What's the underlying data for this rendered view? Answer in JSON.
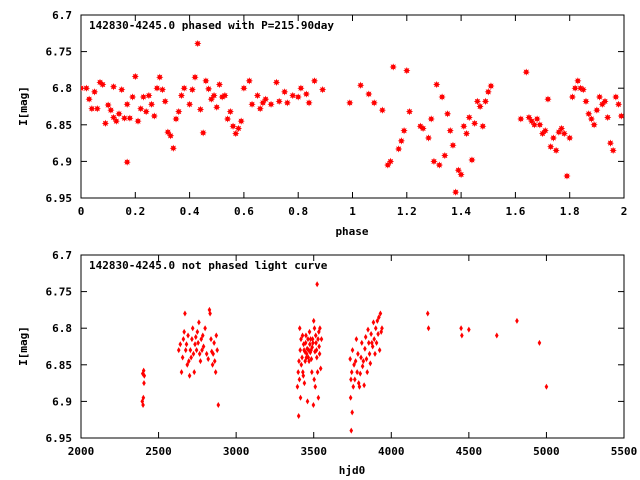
{
  "colors": {
    "points": "#ff0000",
    "axes": "#000000",
    "background": "#ffffff"
  },
  "chart_data": [
    {
      "type": "scatter",
      "title": "142830-4245.0 phased with P=215.90day",
      "xlabel": "phase",
      "ylabel": "I[mag]",
      "xlim": [
        0,
        2
      ],
      "ylim": [
        6.7,
        6.95
      ],
      "y_inverted": true,
      "grid": false,
      "legend": "none",
      "marker": "star",
      "xticks": [
        0,
        0.2,
        0.4,
        0.6,
        0.8,
        1,
        1.2,
        1.4,
        1.6,
        1.8,
        2
      ],
      "xtick_labels": [
        "0",
        "0.2",
        "0.4",
        "0.6",
        "0.8",
        "1",
        "1.2",
        "1.4",
        "1.6",
        "1.8",
        "2"
      ],
      "yticks": [
        6.7,
        6.75,
        6.8,
        6.85,
        6.9,
        6.95
      ],
      "ytick_labels": [
        "6.7",
        "6.75",
        "6.8",
        "6.85",
        "6.9",
        "6.95"
      ],
      "points": [
        [
          0.0,
          6.8
        ],
        [
          0.02,
          6.8
        ],
        [
          0.03,
          6.815
        ],
        [
          0.04,
          6.828
        ],
        [
          0.05,
          6.805
        ],
        [
          0.06,
          6.828
        ],
        [
          0.07,
          6.792
        ],
        [
          0.08,
          6.795
        ],
        [
          0.09,
          6.848
        ],
        [
          0.1,
          6.823
        ],
        [
          0.11,
          6.83
        ],
        [
          0.12,
          6.798
        ],
        [
          0.12,
          6.84
        ],
        [
          0.13,
          6.845
        ],
        [
          0.14,
          6.835
        ],
        [
          0.15,
          6.802
        ],
        [
          0.16,
          6.841
        ],
        [
          0.17,
          6.822
        ],
        [
          0.17,
          6.901
        ],
        [
          0.18,
          6.841
        ],
        [
          0.19,
          6.812
        ],
        [
          0.2,
          6.784
        ],
        [
          0.21,
          6.845
        ],
        [
          0.22,
          6.828
        ],
        [
          0.23,
          6.812
        ],
        [
          0.24,
          6.832
        ],
        [
          0.25,
          6.81
        ],
        [
          0.26,
          6.822
        ],
        [
          0.27,
          6.838
        ],
        [
          0.28,
          6.8
        ],
        [
          0.29,
          6.785
        ],
        [
          0.3,
          6.802
        ],
        [
          0.31,
          6.818
        ],
        [
          0.32,
          6.86
        ],
        [
          0.33,
          6.865
        ],
        [
          0.34,
          6.882
        ],
        [
          0.35,
          6.842
        ],
        [
          0.36,
          6.832
        ],
        [
          0.37,
          6.81
        ],
        [
          0.38,
          6.8
        ],
        [
          0.4,
          6.822
        ],
        [
          0.41,
          6.802
        ],
        [
          0.42,
          6.785
        ],
        [
          0.43,
          6.739
        ],
        [
          0.44,
          6.829
        ],
        [
          0.45,
          6.861
        ],
        [
          0.46,
          6.79
        ],
        [
          0.47,
          6.801
        ],
        [
          0.48,
          6.815
        ],
        [
          0.49,
          6.81
        ],
        [
          0.5,
          6.826
        ],
        [
          0.51,
          6.795
        ],
        [
          0.52,
          6.812
        ],
        [
          0.53,
          6.81
        ],
        [
          0.54,
          6.842
        ],
        [
          0.55,
          6.832
        ],
        [
          0.56,
          6.852
        ],
        [
          0.57,
          6.862
        ],
        [
          0.58,
          6.855
        ],
        [
          0.59,
          6.845
        ],
        [
          0.6,
          6.8
        ],
        [
          0.62,
          6.79
        ],
        [
          0.63,
          6.822
        ],
        [
          0.65,
          6.81
        ],
        [
          0.66,
          6.828
        ],
        [
          0.67,
          6.82
        ],
        [
          0.68,
          6.815
        ],
        [
          0.7,
          6.822
        ],
        [
          0.72,
          6.792
        ],
        [
          0.73,
          6.818
        ],
        [
          0.75,
          6.805
        ],
        [
          0.76,
          6.82
        ],
        [
          0.78,
          6.81
        ],
        [
          0.8,
          6.812
        ],
        [
          0.81,
          6.8
        ],
        [
          0.83,
          6.808
        ],
        [
          0.84,
          6.82
        ],
        [
          0.86,
          6.79
        ],
        [
          0.89,
          6.802
        ],
        [
          0.99,
          6.82
        ],
        [
          1.03,
          6.796
        ],
        [
          1.06,
          6.808
        ],
        [
          1.08,
          6.82
        ],
        [
          1.11,
          6.83
        ],
        [
          1.13,
          6.905
        ],
        [
          1.14,
          6.9
        ],
        [
          1.15,
          6.771
        ],
        [
          1.17,
          6.883
        ],
        [
          1.18,
          6.872
        ],
        [
          1.19,
          6.858
        ],
        [
          1.2,
          6.776
        ],
        [
          1.21,
          6.832
        ],
        [
          1.25,
          6.852
        ],
        [
          1.26,
          6.855
        ],
        [
          1.28,
          6.868
        ],
        [
          1.29,
          6.842
        ],
        [
          1.3,
          6.9
        ],
        [
          1.31,
          6.795
        ],
        [
          1.32,
          6.905
        ],
        [
          1.33,
          6.812
        ],
        [
          1.34,
          6.892
        ],
        [
          1.35,
          6.835
        ],
        [
          1.36,
          6.858
        ],
        [
          1.37,
          6.878
        ],
        [
          1.38,
          6.942
        ],
        [
          1.39,
          6.912
        ],
        [
          1.4,
          6.918
        ],
        [
          1.41,
          6.852
        ],
        [
          1.42,
          6.862
        ],
        [
          1.43,
          6.84
        ],
        [
          1.44,
          6.898
        ],
        [
          1.45,
          6.848
        ],
        [
          1.46,
          6.818
        ],
        [
          1.47,
          6.825
        ],
        [
          1.48,
          6.852
        ],
        [
          1.49,
          6.818
        ],
        [
          1.5,
          6.805
        ],
        [
          1.51,
          6.797
        ],
        [
          1.62,
          6.842
        ],
        [
          1.64,
          6.778
        ],
        [
          1.65,
          6.84
        ],
        [
          1.66,
          6.845
        ],
        [
          1.67,
          6.85
        ],
        [
          1.68,
          6.842
        ],
        [
          1.69,
          6.85
        ],
        [
          1.7,
          6.862
        ],
        [
          1.71,
          6.858
        ],
        [
          1.72,
          6.815
        ],
        [
          1.73,
          6.88
        ],
        [
          1.74,
          6.868
        ],
        [
          1.75,
          6.885
        ],
        [
          1.76,
          6.86
        ],
        [
          1.77,
          6.855
        ],
        [
          1.78,
          6.862
        ],
        [
          1.79,
          6.92
        ],
        [
          1.8,
          6.868
        ],
        [
          1.81,
          6.812
        ],
        [
          1.82,
          6.8
        ],
        [
          1.83,
          6.79
        ],
        [
          1.84,
          6.8
        ],
        [
          1.85,
          6.802
        ],
        [
          1.86,
          6.818
        ],
        [
          1.87,
          6.835
        ],
        [
          1.88,
          6.842
        ],
        [
          1.89,
          6.85
        ],
        [
          1.9,
          6.83
        ],
        [
          1.91,
          6.812
        ],
        [
          1.92,
          6.822
        ],
        [
          1.93,
          6.818
        ],
        [
          1.94,
          6.84
        ],
        [
          1.95,
          6.875
        ],
        [
          1.96,
          6.885
        ],
        [
          1.97,
          6.812
        ],
        [
          1.98,
          6.822
        ],
        [
          1.99,
          6.838
        ]
      ]
    },
    {
      "type": "scatter",
      "title": "142830-4245.0 not phased light curve",
      "xlabel": "hjd0",
      "ylabel": "I[mag]",
      "xlim": [
        2000,
        5500
      ],
      "ylim": [
        6.7,
        6.95
      ],
      "y_inverted": true,
      "grid": false,
      "legend": "none",
      "marker": "diamond",
      "xticks": [
        2000,
        2500,
        3000,
        3500,
        4000,
        4500,
        5000,
        5500
      ],
      "xtick_labels": [
        "2000",
        "2500",
        "3000",
        "3500",
        "4000",
        "4500",
        "5000",
        "5500"
      ],
      "yticks": [
        6.7,
        6.75,
        6.8,
        6.85,
        6.9,
        6.95
      ],
      "ytick_labels": [
        "6.7",
        "6.75",
        "6.8",
        "6.85",
        "6.9",
        "6.95"
      ],
      "points": [
        [
          2395,
          6.9
        ],
        [
          2398,
          6.862
        ],
        [
          2400,
          6.905
        ],
        [
          2402,
          6.895
        ],
        [
          2404,
          6.858
        ],
        [
          2406,
          6.875
        ],
        [
          2408,
          6.865
        ],
        [
          2630,
          6.83
        ],
        [
          2640,
          6.822
        ],
        [
          2648,
          6.86
        ],
        [
          2655,
          6.84
        ],
        [
          2660,
          6.815
        ],
        [
          2665,
          6.805
        ],
        [
          2670,
          6.78
        ],
        [
          2675,
          6.83
        ],
        [
          2680,
          6.822
        ],
        [
          2685,
          6.85
        ],
        [
          2690,
          6.81
        ],
        [
          2695,
          6.845
        ],
        [
          2700,
          6.865
        ],
        [
          2705,
          6.83
        ],
        [
          2710,
          6.84
        ],
        [
          2715,
          6.815
        ],
        [
          2720,
          6.8
        ],
        [
          2725,
          6.835
        ],
        [
          2730,
          6.86
        ],
        [
          2735,
          6.822
        ],
        [
          2740,
          6.812
        ],
        [
          2745,
          6.83
        ],
        [
          2750,
          6.805
        ],
        [
          2755,
          6.82
        ],
        [
          2760,
          6.792
        ],
        [
          2765,
          6.835
        ],
        [
          2770,
          6.845
        ],
        [
          2775,
          6.815
        ],
        [
          2780,
          6.83
        ],
        [
          2785,
          6.81
        ],
        [
          2790,
          6.825
        ],
        [
          2800,
          6.8
        ],
        [
          2810,
          6.835
        ],
        [
          2820,
          6.842
        ],
        [
          2828,
          6.775
        ],
        [
          2832,
          6.78
        ],
        [
          2838,
          6.815
        ],
        [
          2843,
          6.832
        ],
        [
          2848,
          6.85
        ],
        [
          2852,
          6.835
        ],
        [
          2858,
          6.82
        ],
        [
          2862,
          6.845
        ],
        [
          2868,
          6.86
        ],
        [
          2872,
          6.81
        ],
        [
          2878,
          6.83
        ],
        [
          2885,
          6.905
        ],
        [
          3395,
          6.88
        ],
        [
          3400,
          6.86
        ],
        [
          3403,
          6.92
        ],
        [
          3405,
          6.845
        ],
        [
          3408,
          6.87
        ],
        [
          3410,
          6.8
        ],
        [
          3413,
          6.83
        ],
        [
          3415,
          6.895
        ],
        [
          3418,
          6.815
        ],
        [
          3420,
          6.85
        ],
        [
          3425,
          6.84
        ],
        [
          3428,
          6.81
        ],
        [
          3430,
          6.86
        ],
        [
          3433,
          6.865
        ],
        [
          3435,
          6.822
        ],
        [
          3438,
          6.83
        ],
        [
          3440,
          6.875
        ],
        [
          3443,
          6.832
        ],
        [
          3445,
          6.845
        ],
        [
          3448,
          6.82
        ],
        [
          3450,
          6.81
        ],
        [
          3453,
          6.84
        ],
        [
          3455,
          6.835
        ],
        [
          3458,
          6.828
        ],
        [
          3460,
          6.9
        ],
        [
          3463,
          6.815
        ],
        [
          3465,
          6.84
        ],
        [
          3468,
          6.83
        ],
        [
          3470,
          6.845
        ],
        [
          3473,
          6.805
        ],
        [
          3475,
          6.822
        ],
        [
          3478,
          6.833
        ],
        [
          3480,
          6.815
        ],
        [
          3483,
          6.83
        ],
        [
          3485,
          6.842
        ],
        [
          3488,
          6.86
        ],
        [
          3490,
          6.826
        ],
        [
          3493,
          6.815
        ],
        [
          3495,
          6.82
        ],
        [
          3498,
          6.905
        ],
        [
          3500,
          6.79
        ],
        [
          3503,
          6.87
        ],
        [
          3505,
          6.8
        ],
        [
          3508,
          6.832
        ],
        [
          3510,
          6.88
        ],
        [
          3513,
          6.81
        ],
        [
          3515,
          6.82
        ],
        [
          3518,
          6.83
        ],
        [
          3520,
          6.84
        ],
        [
          3522,
          6.74
        ],
        [
          3525,
          6.86
        ],
        [
          3528,
          6.815
        ],
        [
          3530,
          6.895
        ],
        [
          3533,
          6.805
        ],
        [
          3535,
          6.825
        ],
        [
          3538,
          6.835
        ],
        [
          3540,
          6.8
        ],
        [
          3545,
          6.855
        ],
        [
          3550,
          6.815
        ],
        [
          3735,
          6.842
        ],
        [
          3738,
          6.895
        ],
        [
          3740,
          6.87
        ],
        [
          3742,
          6.94
        ],
        [
          3745,
          6.86
        ],
        [
          3748,
          6.915
        ],
        [
          3750,
          6.83
        ],
        [
          3755,
          6.88
        ],
        [
          3760,
          6.85
        ],
        [
          3765,
          6.87
        ],
        [
          3770,
          6.845
        ],
        [
          3775,
          6.815
        ],
        [
          3780,
          6.86
        ],
        [
          3785,
          6.835
        ],
        [
          3790,
          6.875
        ],
        [
          3795,
          6.88
        ],
        [
          3800,
          6.862
        ],
        [
          3805,
          6.84
        ],
        [
          3810,
          6.82
        ],
        [
          3815,
          6.852
        ],
        [
          3820,
          6.845
        ],
        [
          3825,
          6.878
        ],
        [
          3830,
          6.828
        ],
        [
          3835,
          6.812
        ],
        [
          3840,
          6.842
        ],
        [
          3845,
          6.86
        ],
        [
          3850,
          6.802
        ],
        [
          3855,
          6.82
        ],
        [
          3860,
          6.835
        ],
        [
          3865,
          6.848
        ],
        [
          3870,
          6.808
        ],
        [
          3875,
          6.82
        ],
        [
          3880,
          6.825
        ],
        [
          3885,
          6.792
        ],
        [
          3890,
          6.815
        ],
        [
          3895,
          6.835
        ],
        [
          3900,
          6.8
        ],
        [
          3905,
          6.82
        ],
        [
          3910,
          6.79
        ],
        [
          3915,
          6.808
        ],
        [
          3920,
          6.785
        ],
        [
          3925,
          6.83
        ],
        [
          3930,
          6.78
        ],
        [
          3935,
          6.805
        ],
        [
          3940,
          6.8
        ],
        [
          4235,
          6.78
        ],
        [
          4240,
          6.8
        ],
        [
          4450,
          6.8
        ],
        [
          4455,
          6.81
        ],
        [
          4500,
          6.802
        ],
        [
          4680,
          6.81
        ],
        [
          4810,
          6.79
        ],
        [
          4955,
          6.82
        ],
        [
          5000,
          6.88
        ]
      ]
    }
  ]
}
